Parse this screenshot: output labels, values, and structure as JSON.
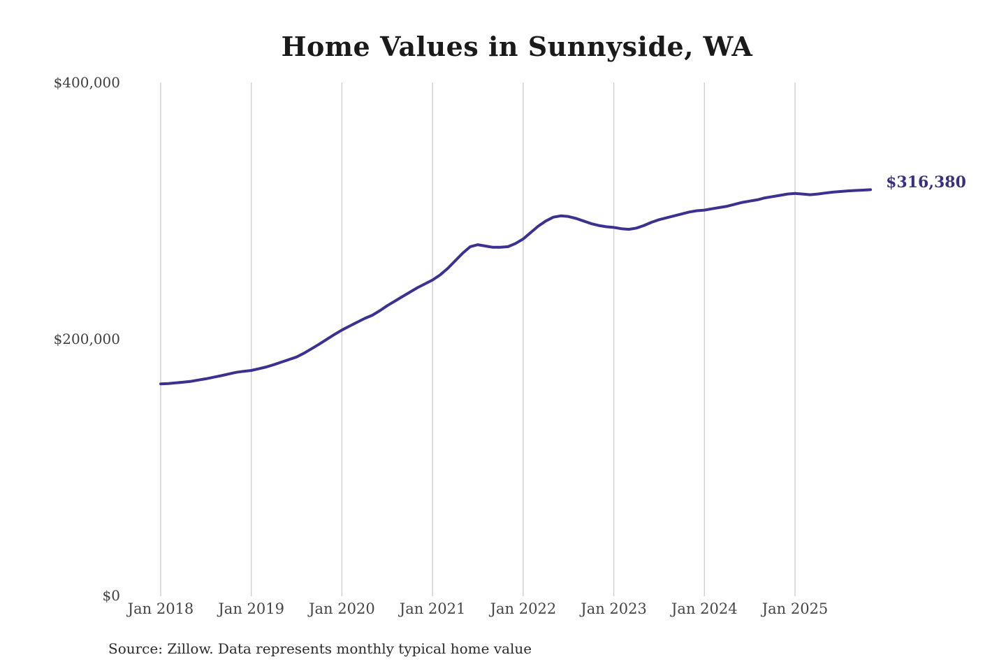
{
  "title": "Home Values in Sunnyside, WA",
  "source_note": "Source: Zillow. Data represents monthly typical home value",
  "end_label": "$316,380",
  "colors": {
    "line": "#3a3191",
    "end_label": "#373082",
    "grid": "#cccccc",
    "title": "#1a1a1a",
    "axis_label": "#3f3f3f",
    "source": "#2b2b2b",
    "background": "#ffffff"
  },
  "y_axis": {
    "ticks": [
      {
        "label": "$400,000",
        "value": 400000
      },
      {
        "label": "$200,000",
        "value": 200000
      },
      {
        "label": "$0",
        "value": 0
      }
    ]
  },
  "x_axis": {
    "ticks": [
      {
        "label": "Jan 2018",
        "month_index": 0
      },
      {
        "label": "Jan 2019",
        "month_index": 12
      },
      {
        "label": "Jan 2020",
        "month_index": 24
      },
      {
        "label": "Jan 2021",
        "month_index": 36
      },
      {
        "label": "Jan 2022",
        "month_index": 48
      },
      {
        "label": "Jan 2023",
        "month_index": 60
      },
      {
        "label": "Jan 2024",
        "month_index": 72
      },
      {
        "label": "Jan 2025",
        "month_index": 84
      }
    ]
  },
  "chart_data": {
    "type": "line",
    "title": "Home Values in Sunnyside, WA",
    "xlabel": "",
    "ylabel": "",
    "ylim": [
      0,
      400000
    ],
    "grid": "vertical-only",
    "legend": "none",
    "end_annotation": "$316,380",
    "series_name": "Monthly typical home value (Zillow)",
    "x": [
      "2018-01",
      "2018-02",
      "2018-03",
      "2018-04",
      "2018-05",
      "2018-06",
      "2018-07",
      "2018-08",
      "2018-09",
      "2018-10",
      "2018-11",
      "2018-12",
      "2019-01",
      "2019-02",
      "2019-03",
      "2019-04",
      "2019-05",
      "2019-06",
      "2019-07",
      "2019-08",
      "2019-09",
      "2019-10",
      "2019-11",
      "2019-12",
      "2020-01",
      "2020-02",
      "2020-03",
      "2020-04",
      "2020-05",
      "2020-06",
      "2020-07",
      "2020-08",
      "2020-09",
      "2020-10",
      "2020-11",
      "2020-12",
      "2021-01",
      "2021-02",
      "2021-03",
      "2021-04",
      "2021-05",
      "2021-06",
      "2021-07",
      "2021-08",
      "2021-09",
      "2021-10",
      "2021-11",
      "2021-12",
      "2022-01",
      "2022-02",
      "2022-03",
      "2022-04",
      "2022-05",
      "2022-06",
      "2022-07",
      "2022-08",
      "2022-09",
      "2022-10",
      "2022-11",
      "2022-12",
      "2023-01",
      "2023-02",
      "2023-03",
      "2023-04",
      "2023-05",
      "2023-06",
      "2023-07",
      "2023-08",
      "2023-09",
      "2023-10",
      "2023-11",
      "2023-12",
      "2024-01",
      "2024-02",
      "2024-03",
      "2024-04",
      "2024-05",
      "2024-06",
      "2024-07",
      "2024-08",
      "2024-09",
      "2024-10",
      "2024-11",
      "2024-12",
      "2025-01",
      "2025-02",
      "2025-03",
      "2025-04",
      "2025-05",
      "2025-06",
      "2025-07",
      "2025-08",
      "2025-09",
      "2025-10",
      "2025-11"
    ],
    "values": [
      165000,
      165300,
      165800,
      166400,
      167000,
      168000,
      169000,
      170200,
      171400,
      172700,
      174000,
      174800,
      175500,
      176800,
      178200,
      180000,
      182000,
      184000,
      186000,
      189000,
      192500,
      196000,
      199800,
      203500,
      207000,
      210000,
      213000,
      216000,
      218500,
      222000,
      226000,
      229500,
      233000,
      236500,
      240000,
      243000,
      246000,
      250000,
      255000,
      261000,
      267000,
      272000,
      273500,
      272500,
      271500,
      271500,
      272000,
      274500,
      278000,
      283000,
      288000,
      292000,
      295000,
      296000,
      295500,
      294000,
      292000,
      290000,
      288500,
      287500,
      287000,
      286000,
      285500,
      286500,
      288500,
      291000,
      293000,
      294500,
      296000,
      297500,
      299000,
      300000,
      300500,
      301500,
      302500,
      303500,
      305000,
      306500,
      307500,
      308500,
      310000,
      311000,
      312000,
      313000,
      313500,
      313000,
      312500,
      313000,
      313800,
      314500,
      315000,
      315500,
      315800,
      316100,
      316380
    ]
  }
}
